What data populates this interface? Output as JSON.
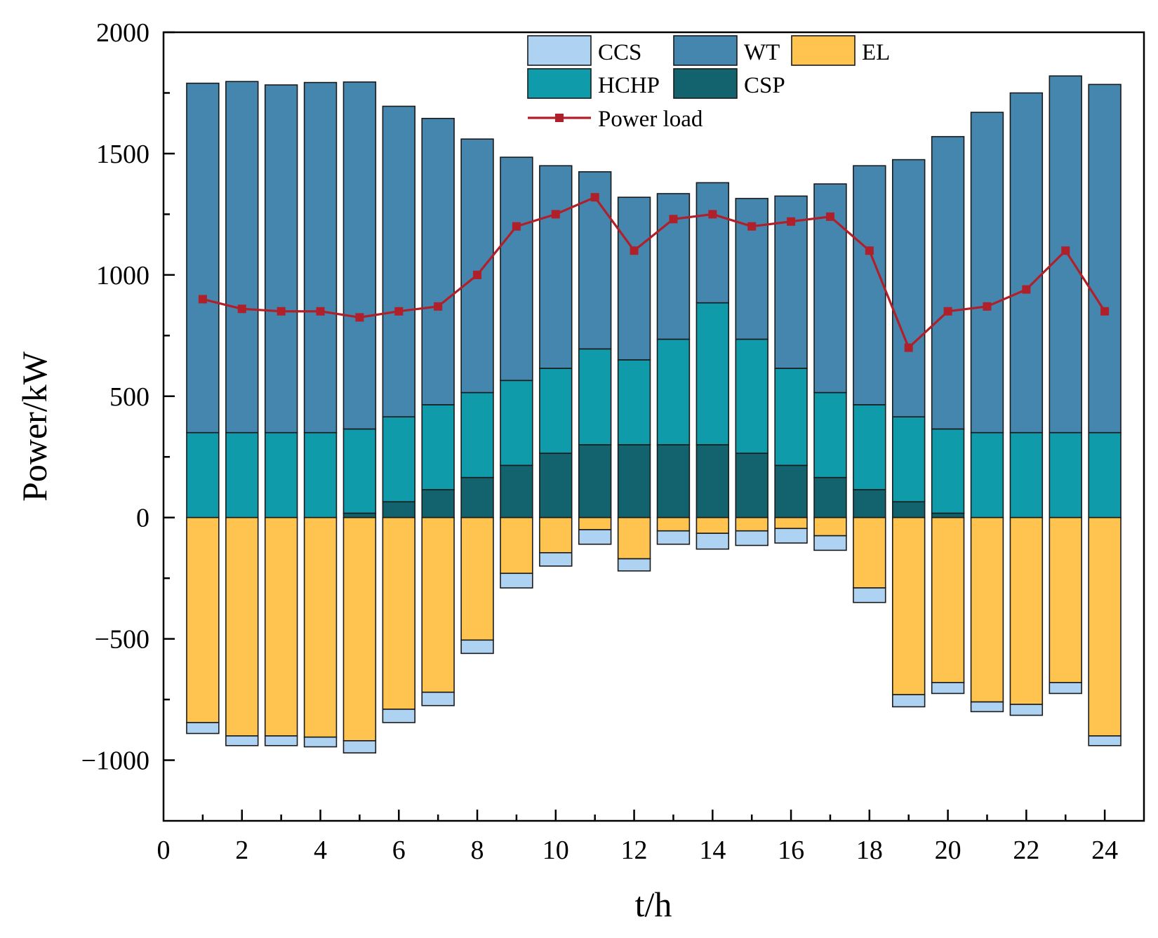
{
  "chart_data": {
    "type": "bar",
    "stacked": true,
    "title": "",
    "xlabel": "t/h",
    "ylabel": "Power/kW",
    "xlim": [
      0,
      25
    ],
    "ylim": [
      -1250,
      2000
    ],
    "xticks": [
      0,
      2,
      4,
      6,
      8,
      10,
      12,
      14,
      16,
      18,
      20,
      22,
      24
    ],
    "xtick_labels": [
      "0",
      "2",
      "4",
      "6",
      "8",
      "10",
      "12",
      "14",
      "16",
      "18",
      "20",
      "22",
      "24"
    ],
    "yticks": [
      -1000,
      -500,
      0,
      500,
      1000,
      1500,
      2000
    ],
    "ytick_labels": [
      "−1000",
      "−500",
      "0",
      "500",
      "1000",
      "1500",
      "2000"
    ],
    "grid": false,
    "legend_position": "top-center",
    "x": [
      1,
      2,
      3,
      4,
      5,
      6,
      7,
      8,
      9,
      10,
      11,
      12,
      13,
      14,
      15,
      16,
      17,
      18,
      19,
      20,
      21,
      22,
      23,
      24
    ],
    "series": [
      {
        "name": "CSP",
        "kind": "bar",
        "stack": "positive",
        "color": "#12636E",
        "values": [
          0,
          0,
          0,
          0,
          18,
          65,
          115,
          165,
          215,
          265,
          300,
          300,
          300,
          300,
          265,
          215,
          165,
          115,
          65,
          18,
          0,
          0,
          0,
          0
        ]
      },
      {
        "name": "HCHP",
        "kind": "bar",
        "stack": "positive",
        "color": "#0F9BAA",
        "values": [
          350,
          350,
          350,
          350,
          347,
          350,
          350,
          350,
          350,
          350,
          395,
          350,
          435,
          585,
          470,
          400,
          350,
          350,
          350,
          347,
          350,
          350,
          350,
          350
        ]
      },
      {
        "name": "WT",
        "kind": "bar",
        "stack": "positive",
        "color": "#4586AE",
        "values": [
          1440,
          1447,
          1433,
          1443,
          1430,
          1280,
          1180,
          1045,
          920,
          835,
          730,
          670,
          600,
          495,
          580,
          710,
          860,
          985,
          1060,
          1205,
          1320,
          1400,
          1470,
          1435
        ]
      },
      {
        "name": "EL",
        "kind": "bar",
        "stack": "negative",
        "color": "#FEC44F",
        "values": [
          -845,
          -900,
          -900,
          -905,
          -920,
          -790,
          -720,
          -505,
          -230,
          -145,
          -50,
          -170,
          -55,
          -65,
          -55,
          -45,
          -75,
          -290,
          -730,
          -680,
          -760,
          -770,
          -680,
          -900
        ]
      },
      {
        "name": "CCS",
        "kind": "bar",
        "stack": "negative",
        "color": "#AED2F2",
        "values": [
          -45,
          -40,
          -40,
          -40,
          -50,
          -55,
          -55,
          -55,
          -60,
          -55,
          -60,
          -50,
          -55,
          -65,
          -60,
          -60,
          -60,
          -60,
          -50,
          -45,
          -40,
          -45,
          -45,
          -40
        ]
      },
      {
        "name": "Power load",
        "kind": "line",
        "color": "#B0202A",
        "values": [
          900,
          860,
          850,
          850,
          825,
          850,
          870,
          1000,
          1200,
          1250,
          1320,
          1100,
          1230,
          1250,
          1200,
          1220,
          1240,
          1100,
          700,
          850,
          870,
          940,
          1100,
          850
        ]
      }
    ],
    "legend": [
      "CCS",
      "WT",
      "EL",
      "HCHP",
      "CSP",
      "Power load"
    ]
  }
}
